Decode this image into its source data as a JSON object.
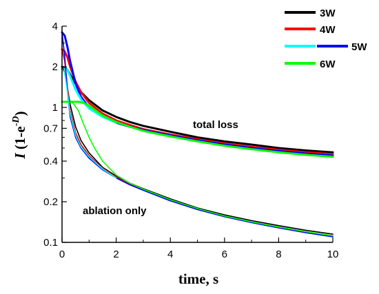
{
  "chart_data": {
    "type": "line",
    "xlabel": "time, s",
    "ylabel_parts": {
      "italic": "I",
      "mid": " (1-e",
      "sup_minus": "-",
      "sup_italic": "D",
      "close": ")"
    },
    "xlim": [
      0,
      10
    ],
    "ylim": [
      0.1,
      4
    ],
    "yscale": "log",
    "x_ticks": [
      0,
      2,
      4,
      6,
      8,
      10
    ],
    "x_tick_labels": [
      "0",
      "2",
      "4",
      "6",
      "8",
      "10"
    ],
    "y_ticks": [
      0.1,
      0.2,
      0.4,
      0.7,
      1,
      2,
      4
    ],
    "y_tick_labels": [
      "0.1",
      "0.2",
      "0.4",
      "0.7",
      "1",
      "2",
      "4"
    ],
    "grid": false,
    "legend_position": "top-right",
    "annotations": [
      "total loss",
      "ablation only"
    ],
    "legend": [
      {
        "label": "3W",
        "colors": [
          "#000000"
        ]
      },
      {
        "label": "4W",
        "colors": [
          "#ff0000"
        ]
      },
      {
        "label": "5W",
        "colors": [
          "#00ffff",
          "#0000ff"
        ]
      },
      {
        "label": "6W",
        "colors": [
          "#00ff00"
        ]
      }
    ],
    "series": [
      {
        "group": "total loss",
        "legend_label": "3W",
        "color": "#000000",
        "x": [
          0,
          0.1,
          0.2,
          0.3,
          0.5,
          0.7,
          1,
          1.5,
          2,
          2.5,
          3,
          4,
          5,
          6,
          7,
          8,
          9,
          10
        ],
        "y": [
          2.0,
          1.97,
          1.9,
          1.75,
          1.5,
          1.3,
          1.13,
          0.95,
          0.85,
          0.78,
          0.73,
          0.66,
          0.6,
          0.56,
          0.53,
          0.5,
          0.48,
          0.465
        ]
      },
      {
        "group": "total loss",
        "legend_label": "4W",
        "color": "#ff0000",
        "x": [
          0,
          0.1,
          0.2,
          0.3,
          0.5,
          0.7,
          1,
          1.5,
          2,
          2.5,
          3,
          4,
          5,
          6,
          7,
          8,
          9,
          10
        ],
        "y": [
          2.7,
          2.6,
          2.35,
          2.0,
          1.55,
          1.3,
          1.08,
          0.9,
          0.8,
          0.74,
          0.69,
          0.63,
          0.58,
          0.54,
          0.51,
          0.485,
          0.465,
          0.45
        ]
      },
      {
        "group": "total loss",
        "legend_label": "5W",
        "color": "#0000ff",
        "x": [
          0,
          0.1,
          0.2,
          0.3,
          0.5,
          0.7,
          1,
          1.5,
          2,
          2.5,
          3,
          4,
          5,
          6,
          7,
          8,
          9,
          10
        ],
        "y": [
          3.6,
          3.4,
          2.8,
          2.2,
          1.5,
          1.2,
          1.0,
          0.86,
          0.77,
          0.72,
          0.68,
          0.62,
          0.57,
          0.53,
          0.5,
          0.475,
          0.455,
          0.44
        ]
      },
      {
        "group": "total loss",
        "legend_label": "5W",
        "color": "#00ffff",
        "x": [
          0,
          0.1,
          0.2,
          0.3,
          0.5,
          0.7,
          1,
          1.5,
          2
        ],
        "y": [
          1.93,
          1.93,
          1.9,
          1.7,
          1.35,
          1.15,
          0.98,
          0.85,
          0.77
        ]
      },
      {
        "group": "total loss",
        "legend_label": "6W",
        "color": "#00ff00",
        "x": [
          0,
          0.2,
          0.4,
          0.6,
          0.8,
          1.0,
          1.2,
          1.5,
          2,
          2.5,
          3,
          4,
          5,
          6,
          7,
          8,
          9,
          10
        ],
        "y": [
          1.1,
          1.1,
          1.1,
          1.1,
          1.08,
          1.03,
          0.96,
          0.87,
          0.78,
          0.72,
          0.67,
          0.61,
          0.56,
          0.52,
          0.49,
          0.465,
          0.445,
          0.43
        ]
      },
      {
        "group": "ablation only",
        "legend_label": "3W",
        "color": "#000000",
        "x": [
          0,
          0.1,
          0.2,
          0.3,
          0.5,
          0.7,
          1,
          1.5,
          2,
          2.5,
          3,
          4,
          5,
          6,
          7,
          8,
          9,
          10
        ],
        "y": [
          2.0,
          1.8,
          1.4,
          1.05,
          0.72,
          0.57,
          0.46,
          0.36,
          0.31,
          0.275,
          0.25,
          0.21,
          0.18,
          0.16,
          0.145,
          0.133,
          0.123,
          0.115
        ]
      },
      {
        "group": "ablation only",
        "legend_label": "4W",
        "color": "#ff0000",
        "x": [
          0,
          0.1,
          0.2,
          0.3,
          0.5,
          0.7,
          1,
          1.5,
          2,
          2.5,
          3,
          4,
          5,
          6,
          7,
          8,
          9,
          10
        ],
        "y": [
          2.7,
          2.2,
          1.4,
          0.95,
          0.65,
          0.53,
          0.44,
          0.355,
          0.305,
          0.27,
          0.245,
          0.205,
          0.177,
          0.157,
          0.142,
          0.13,
          0.12,
          0.112
        ]
      },
      {
        "group": "ablation only",
        "legend_label": "5W",
        "color": "#0000ff",
        "x": [
          0,
          0.1,
          0.2,
          0.3,
          0.5,
          0.7,
          1,
          1.5,
          2,
          2.5,
          3,
          4,
          5,
          6,
          7,
          8,
          9,
          10
        ],
        "y": [
          3.6,
          2.4,
          1.3,
          0.85,
          0.6,
          0.5,
          0.42,
          0.345,
          0.3,
          0.267,
          0.243,
          0.203,
          0.175,
          0.155,
          0.14,
          0.128,
          0.118,
          0.11
        ]
      },
      {
        "group": "ablation only",
        "legend_label": "5W",
        "color": "#00ffff",
        "x": [
          0,
          0.1,
          0.2,
          0.3,
          0.5,
          0.7,
          1,
          1.5,
          2
        ],
        "y": [
          1.93,
          1.8,
          1.3,
          0.9,
          0.62,
          0.51,
          0.43,
          0.35,
          0.3
        ]
      },
      {
        "group": "ablation only",
        "legend_label": "6W",
        "color": "#00ff00",
        "x": [
          0,
          0.2,
          0.4,
          0.6,
          0.8,
          1.0,
          1.2,
          1.5,
          2,
          2.5,
          3,
          4,
          5,
          6,
          7,
          8,
          9,
          10
        ],
        "y": [
          1.1,
          1.1,
          1.08,
          0.95,
          0.75,
          0.6,
          0.5,
          0.4,
          0.315,
          0.275,
          0.248,
          0.207,
          0.178,
          0.157,
          0.142,
          0.13,
          0.12,
          0.112
        ]
      }
    ]
  }
}
